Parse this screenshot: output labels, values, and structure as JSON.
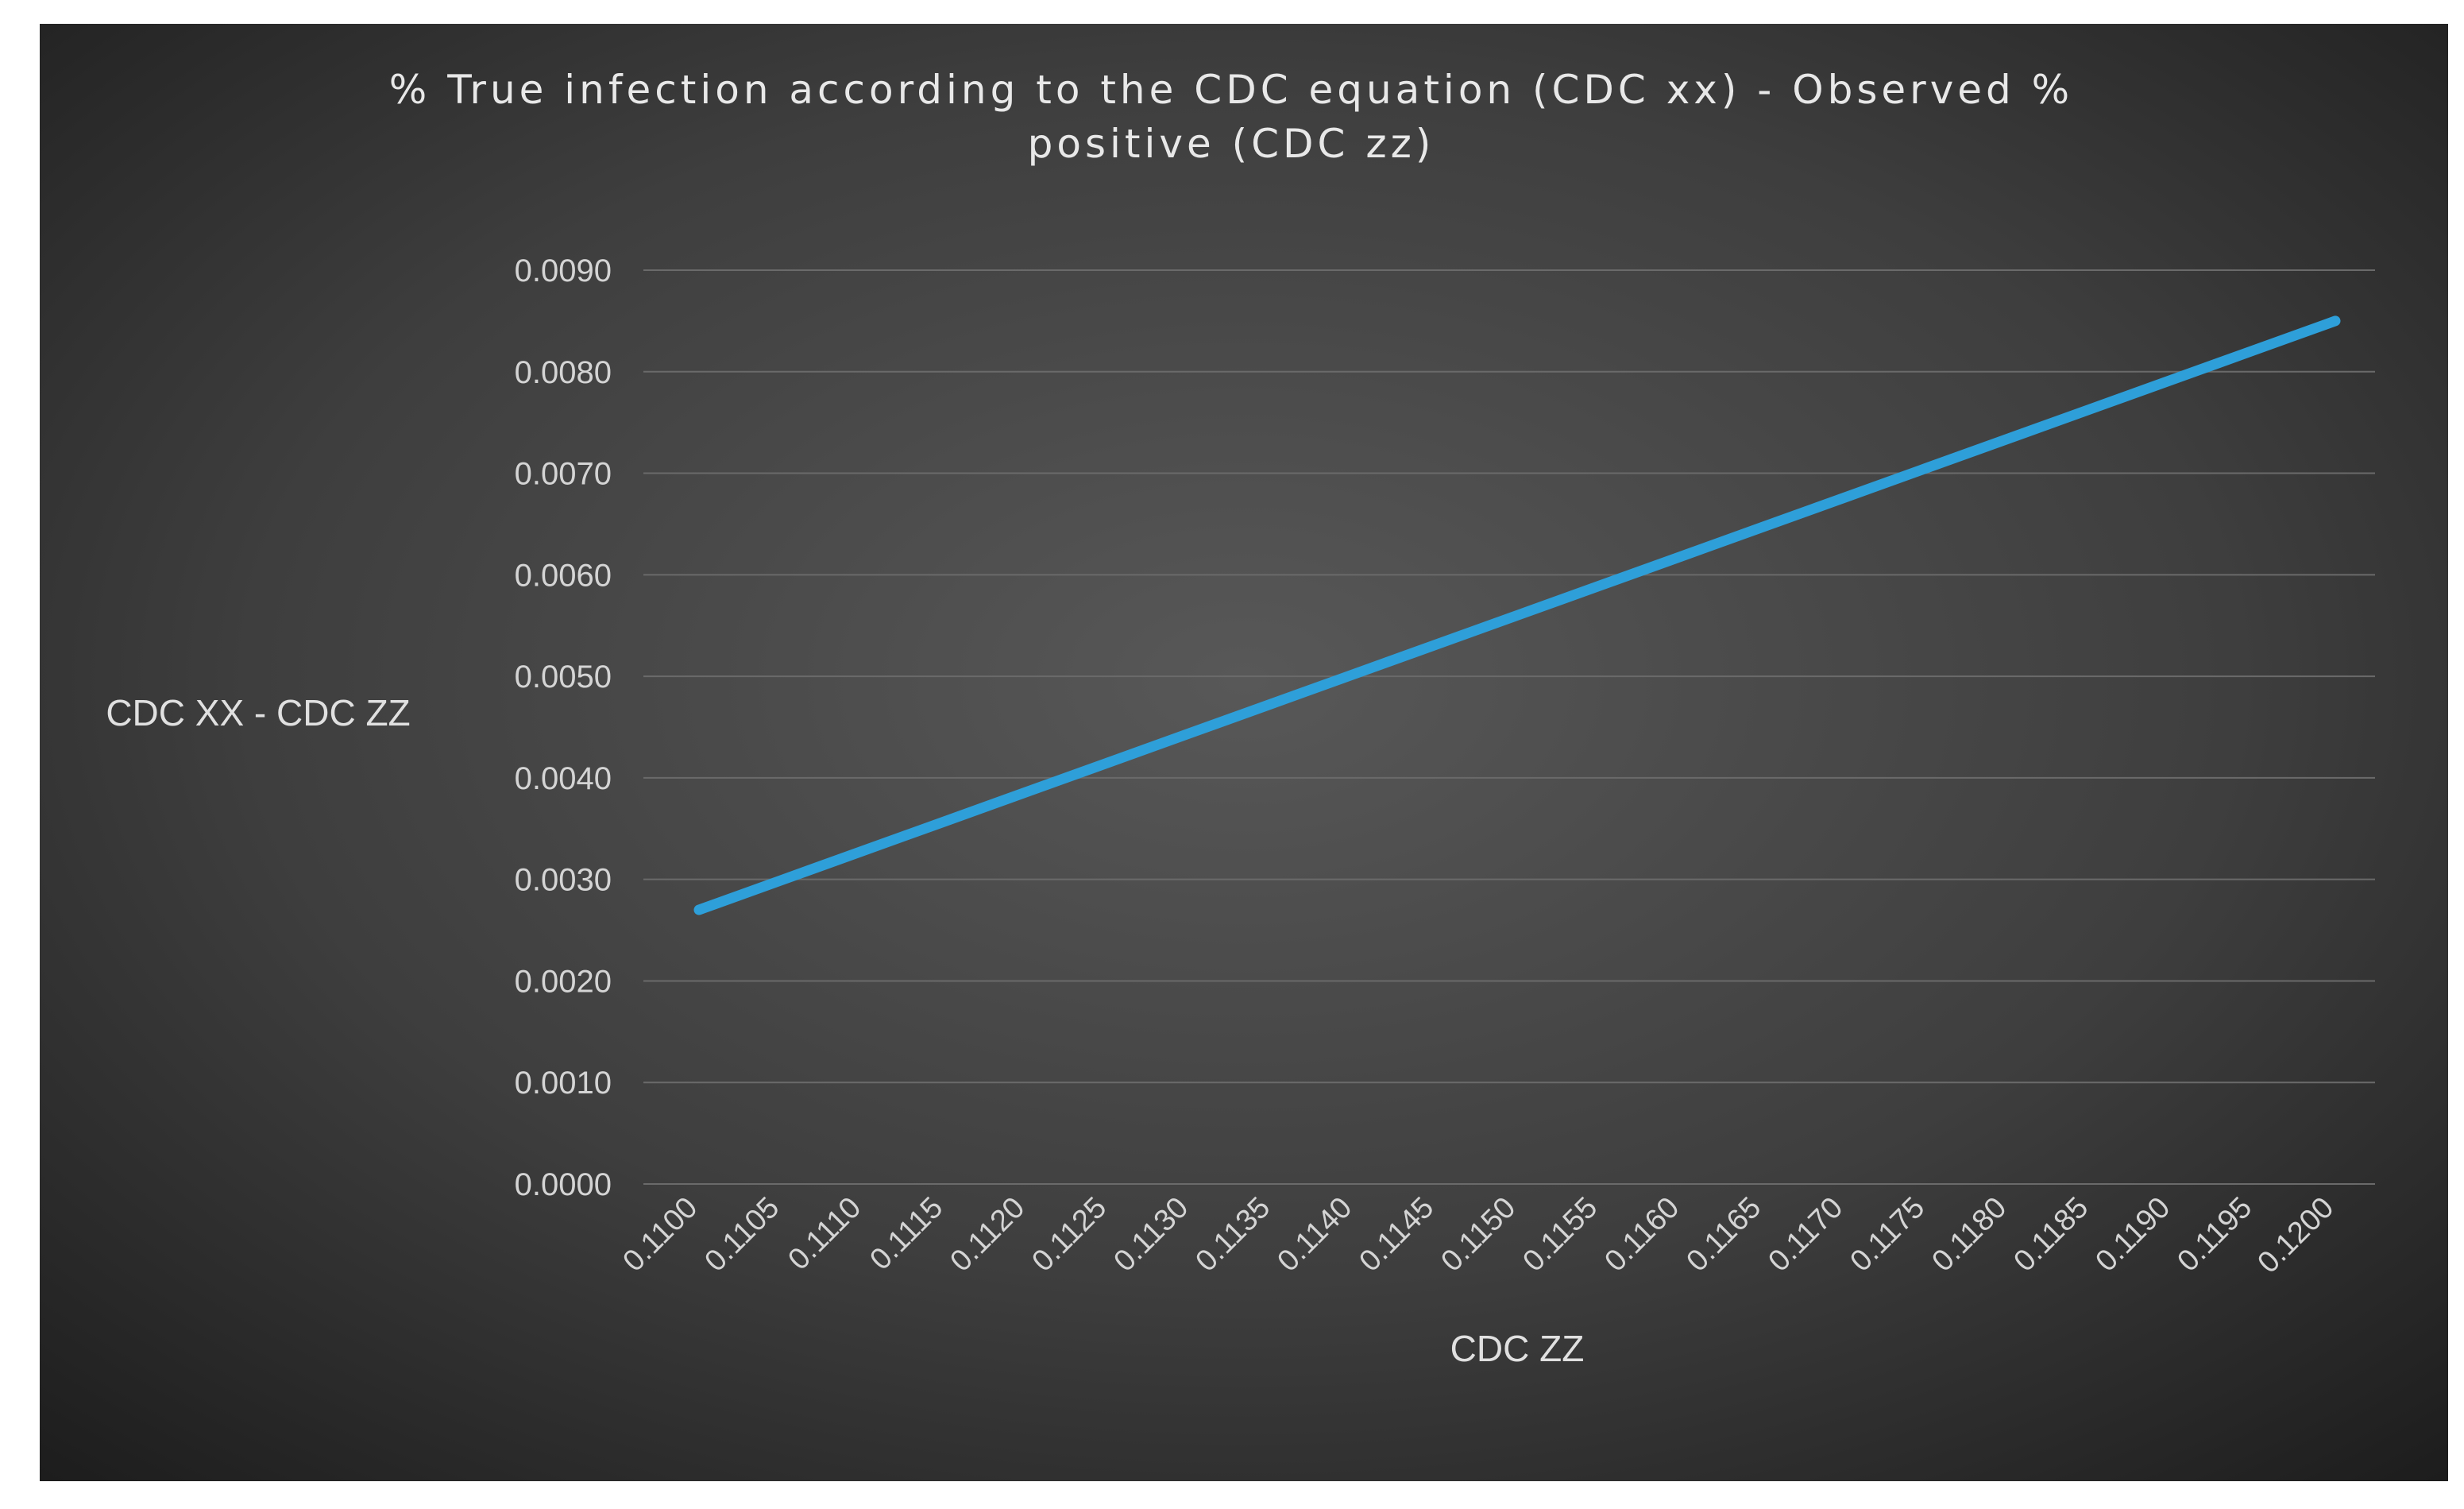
{
  "chart_data": {
    "type": "line",
    "title_lines": [
      "% True infection according to the CDC equation (CDC xx) - Observed %",
      "positive (CDC zz)"
    ],
    "xlabel": "CDC ZZ",
    "ylabel": "CDC XX - CDC ZZ",
    "categories": [
      "0.1100",
      "0.1105",
      "0.1110",
      "0.1115",
      "0.1120",
      "0.1125",
      "0.1130",
      "0.1135",
      "0.1140",
      "0.1145",
      "0.1150",
      "0.1155",
      "0.1160",
      "0.1165",
      "0.1170",
      "0.1175",
      "0.1180",
      "0.1185",
      "0.1190",
      "0.1195",
      "0.1200"
    ],
    "y_ticks": [
      "0.0000",
      "0.0010",
      "0.0020",
      "0.0030",
      "0.0040",
      "0.0050",
      "0.0060",
      "0.0070",
      "0.0080",
      "0.0090"
    ],
    "ylim": [
      0,
      0.009
    ],
    "grid": true,
    "series": [
      {
        "name": "CDC XX - CDC ZZ",
        "color": "#2e9fd9",
        "values": [
          0.0027,
          0.00299,
          0.00328,
          0.00357,
          0.00386,
          0.00415,
          0.00444,
          0.00473,
          0.00502,
          0.00531,
          0.0056,
          0.00589,
          0.00618,
          0.00647,
          0.00676,
          0.00705,
          0.00734,
          0.00763,
          0.00792,
          0.00821,
          0.0085
        ]
      }
    ]
  },
  "colors": {
    "background_center": "#565656",
    "background_edge": "#1e1e1e",
    "line": "#2e9fd9"
  }
}
